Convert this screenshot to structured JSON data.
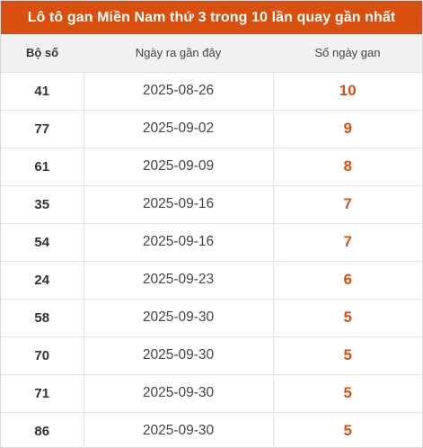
{
  "title": "Lô tô gan Miền Nam thứ 3 trong 10 lần quay gần nhất",
  "headers": {
    "number": "Bộ số",
    "last_date": "Ngày ra gần đây",
    "days": "Số ngày gan"
  },
  "colors": {
    "accent": "#d9500e",
    "header_bg": "#f1f1f1"
  },
  "rows": [
    {
      "number": "41",
      "date": "2025-08-26",
      "days": "10"
    },
    {
      "number": "77",
      "date": "2025-09-02",
      "days": "9"
    },
    {
      "number": "61",
      "date": "2025-09-09",
      "days": "8"
    },
    {
      "number": "35",
      "date": "2025-09-16",
      "days": "7"
    },
    {
      "number": "54",
      "date": "2025-09-16",
      "days": "7"
    },
    {
      "number": "24",
      "date": "2025-09-23",
      "days": "6"
    },
    {
      "number": "58",
      "date": "2025-09-30",
      "days": "5"
    },
    {
      "number": "70",
      "date": "2025-09-30",
      "days": "5"
    },
    {
      "number": "71",
      "date": "2025-09-30",
      "days": "5"
    },
    {
      "number": "86",
      "date": "2025-09-30",
      "days": "5"
    }
  ]
}
